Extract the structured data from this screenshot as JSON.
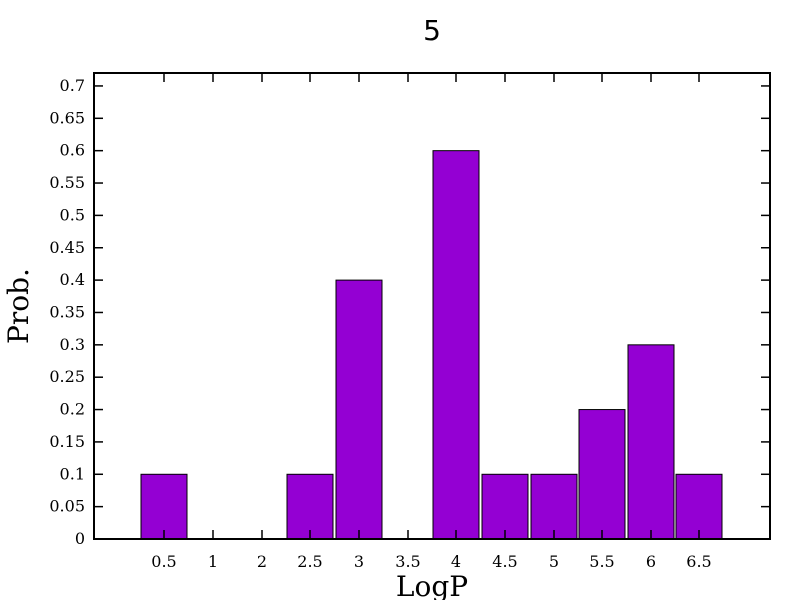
{
  "chart_data": {
    "type": "bar",
    "title": "5",
    "xlabel": "LogP",
    "ylabel": "Prob.",
    "bar_color": "#9400d3",
    "x_ticks": [
      "0.5",
      "1",
      "2",
      "2.5",
      "3",
      "3.5",
      "4",
      "4.5",
      "5",
      "5.5",
      "6",
      "6.5"
    ],
    "y_ticks": [
      "0",
      "0.05",
      "0.1",
      "0.15",
      "0.2",
      "0.25",
      "0.3",
      "0.35",
      "0.4",
      "0.45",
      "0.5",
      "0.55",
      "0.6",
      "0.65",
      "0.7"
    ],
    "ylim": [
      0,
      0.72
    ],
    "bars": [
      {
        "x": 0.5,
        "value": 0.1
      },
      {
        "x": 2.5,
        "value": 0.1
      },
      {
        "x": 3.0,
        "value": 0.4
      },
      {
        "x": 4.0,
        "value": 0.6
      },
      {
        "x": 4.5,
        "value": 0.1
      },
      {
        "x": 5.0,
        "value": 0.1
      },
      {
        "x": 5.5,
        "value": 0.2
      },
      {
        "x": 6.0,
        "value": 0.3
      },
      {
        "x": 6.5,
        "value": 0.1
      }
    ]
  }
}
